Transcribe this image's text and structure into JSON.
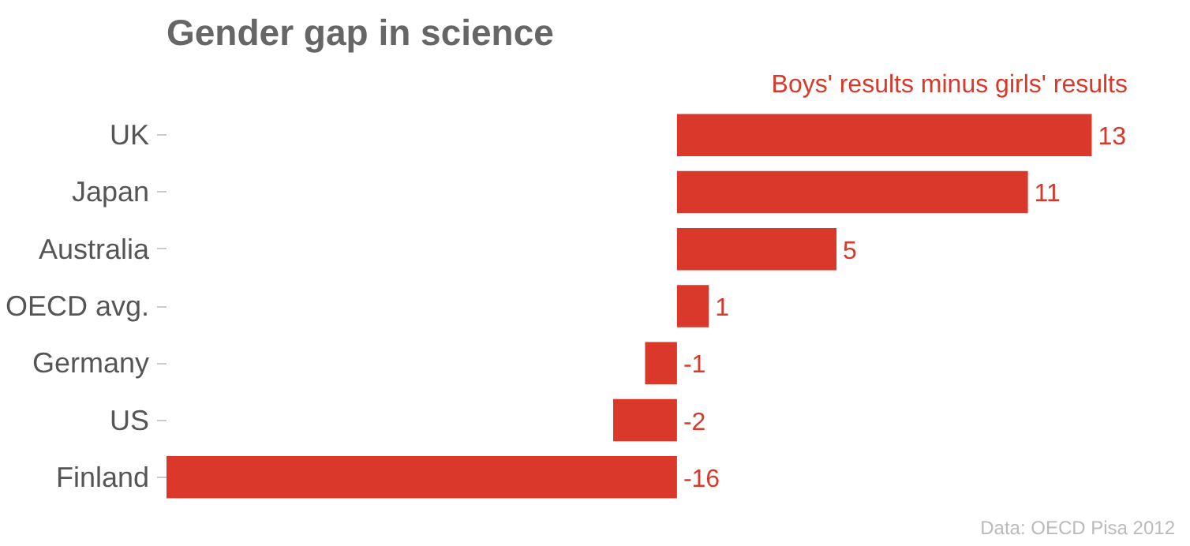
{
  "chart_data": {
    "type": "bar",
    "orientation": "horizontal",
    "title": "Gender gap in science",
    "subtitle": "Boys' results minus girls' results",
    "categories": [
      "UK",
      "Japan",
      "Australia",
      "OECD avg.",
      "Germany",
      "US",
      "Finland"
    ],
    "values": [
      13,
      11,
      5,
      1,
      -1,
      -2,
      -16
    ],
    "color": "#d9382a",
    "data_labels": true,
    "grid": false,
    "annotations": [
      "Data: OECD Pisa 2012"
    ]
  }
}
